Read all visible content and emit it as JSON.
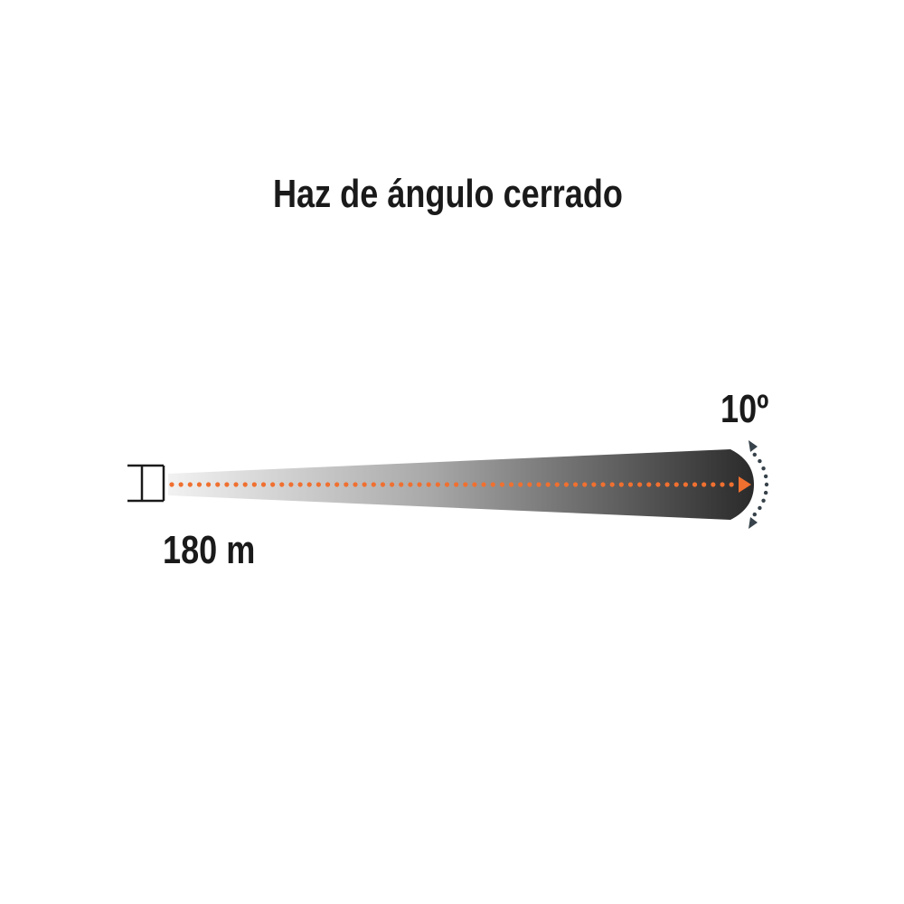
{
  "title": "Haz de ángulo cerrado",
  "distance_label": "180 m",
  "angle_label": "10º",
  "colors": {
    "beam_dots": "#f07030",
    "beam_dark": "#2b2b2b",
    "arc": "#37424a",
    "text": "#1a1a1a"
  },
  "icons": [
    "flashlight-icon",
    "angle-arc-icon"
  ]
}
